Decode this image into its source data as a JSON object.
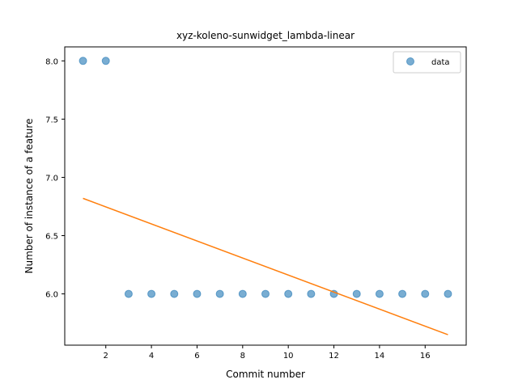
{
  "chart_data": {
    "type": "scatter",
    "title": "xyz-koleno-sunwidget_lambda-linear",
    "xlabel": "Commit number",
    "ylabel": "Number of instance of a feature",
    "xlim": [
      0.2,
      17.8
    ],
    "ylim": [
      5.56,
      8.12
    ],
    "xticks": [
      2,
      4,
      6,
      8,
      10,
      12,
      14,
      16
    ],
    "yticks": [
      6.0,
      6.5,
      7.0,
      7.5,
      8.0
    ],
    "ytick_labels": [
      "6.0",
      "6.5",
      "7.0",
      "7.5",
      "8.0"
    ],
    "legend": {
      "position": "top-right",
      "entries": [
        "data"
      ]
    },
    "series": [
      {
        "name": "data",
        "kind": "scatter",
        "color": "#1f77b4",
        "x": [
          1,
          2,
          3,
          4,
          5,
          6,
          7,
          8,
          9,
          10,
          11,
          12,
          13,
          14,
          15,
          16,
          17
        ],
        "y": [
          8,
          8,
          6,
          6,
          6,
          6,
          6,
          6,
          6,
          6,
          6,
          6,
          6,
          6,
          6,
          6,
          6
        ]
      },
      {
        "kind": "line",
        "color": "#ff7f0e",
        "x": [
          1,
          17
        ],
        "y": [
          6.82,
          5.65
        ]
      }
    ],
    "grid": false
  }
}
